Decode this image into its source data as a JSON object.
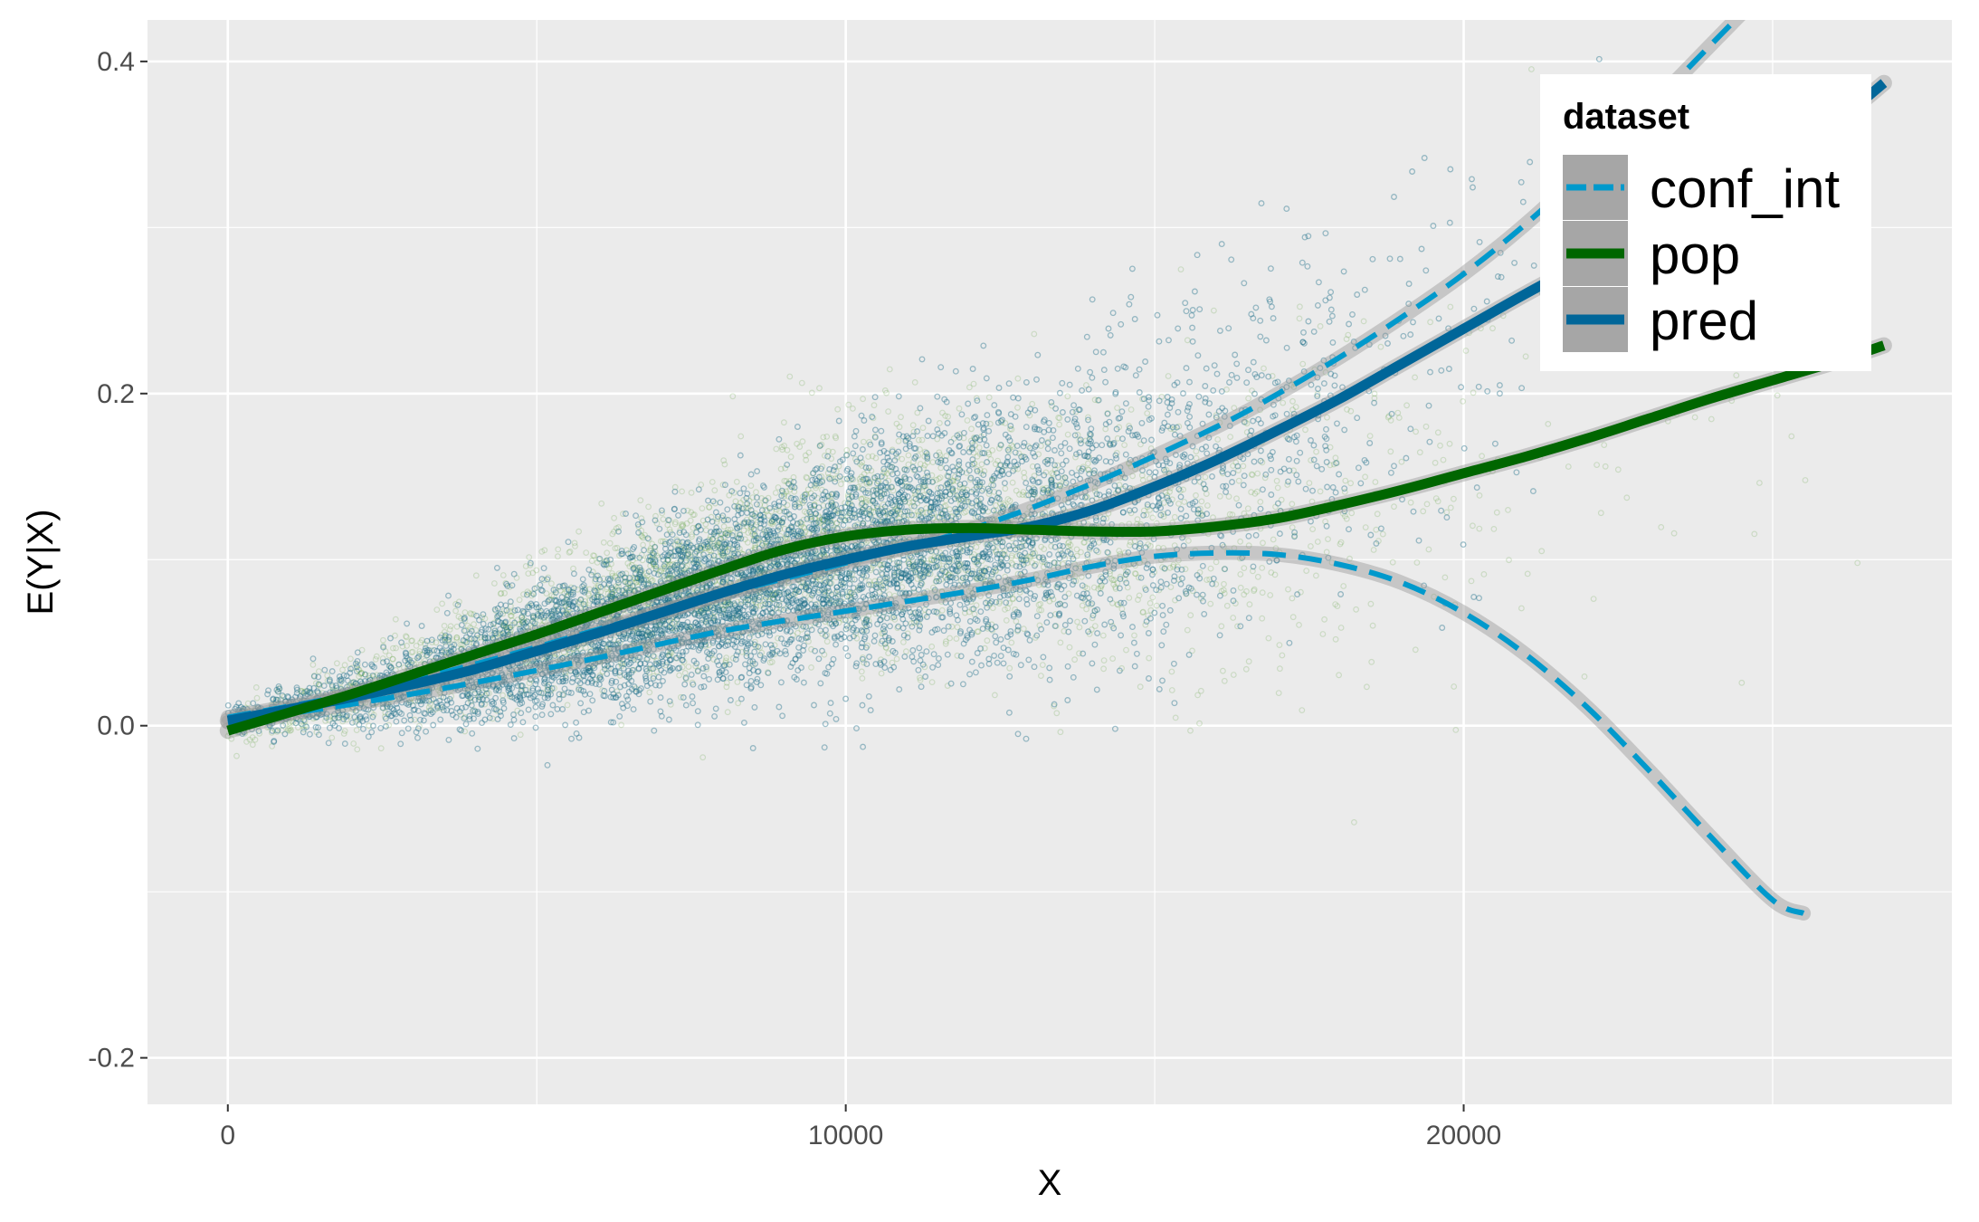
{
  "chart_data": {
    "type": "scatter",
    "title": "",
    "xlabel": "X",
    "ylabel": "E(Y|X)",
    "xlim": [
      -1300,
      27900
    ],
    "ylim": [
      -0.228,
      0.425
    ],
    "x_ticks": [
      0,
      10000,
      20000
    ],
    "x_tick_labels": [
      "0",
      "10000",
      "20000"
    ],
    "x_minor_ticks": [
      5000,
      15000,
      25000
    ],
    "y_ticks": [
      -0.2,
      0.0,
      0.2,
      0.4
    ],
    "y_tick_labels": [
      "-0.2",
      "0.0",
      "0.2",
      "0.4"
    ],
    "y_minor_ticks": [
      -0.1,
      0.1,
      0.3
    ],
    "grid": true,
    "background": "#ebebeb",
    "legend": {
      "title": "dataset",
      "placement": "top-right",
      "entries": [
        {
          "label": "conf_int",
          "color": "#0099cc",
          "style": "dashed"
        },
        {
          "label": "pop",
          "color": "#006600",
          "style": "solid"
        },
        {
          "label": "pred",
          "color": "#006699",
          "style": "solid"
        }
      ]
    },
    "series": [
      {
        "name": "pop",
        "kind": "smooth",
        "color": "#006600",
        "x": [
          0,
          1000,
          2000,
          3000,
          4000,
          5000,
          6000,
          7000,
          8000,
          9000,
          10000,
          11000,
          12000,
          13000,
          14000,
          15000,
          16000,
          17000,
          18000,
          19000,
          20000,
          21000,
          22000,
          23000,
          24000,
          25000,
          26000,
          26800
        ],
        "y": [
          -0.003,
          0.008,
          0.019,
          0.031,
          0.043,
          0.055,
          0.068,
          0.081,
          0.094,
          0.106,
          0.114,
          0.118,
          0.119,
          0.118,
          0.117,
          0.117,
          0.12,
          0.125,
          0.133,
          0.142,
          0.152,
          0.162,
          0.173,
          0.185,
          0.197,
          0.208,
          0.219,
          0.229
        ]
      },
      {
        "name": "pred",
        "kind": "smooth",
        "color": "#006699",
        "x": [
          0,
          1000,
          2000,
          3000,
          4000,
          5000,
          6000,
          7000,
          8000,
          9000,
          10000,
          11000,
          12000,
          13000,
          14000,
          15000,
          16000,
          17000,
          18000,
          19000,
          20000,
          21000,
          22000,
          23000,
          24000,
          25000,
          26000,
          26800
        ],
        "y": [
          0.003,
          0.01,
          0.017,
          0.025,
          0.034,
          0.045,
          0.056,
          0.068,
          0.08,
          0.091,
          0.1,
          0.108,
          0.114,
          0.12,
          0.13,
          0.144,
          0.16,
          0.178,
          0.197,
          0.218,
          0.239,
          0.26,
          0.28,
          0.3,
          0.32,
          0.34,
          0.363,
          0.387
        ]
      },
      {
        "name": "conf_int",
        "kind": "dashed",
        "color": "#0099cc",
        "x": [
          0,
          2000,
          4000,
          6000,
          8000,
          10000,
          12000,
          14000,
          16000,
          17000,
          18000,
          19000,
          20000,
          21000,
          22000,
          23000,
          24000,
          25000,
          25500
        ],
        "y": [
          0.005,
          0.019,
          0.037,
          0.058,
          0.079,
          0.098,
          0.118,
          0.146,
          0.18,
          0.2,
          0.222,
          0.246,
          0.272,
          0.302,
          0.336,
          0.372,
          0.41,
          0.448,
          0.467
        ]
      },
      {
        "name": "conf_int",
        "kind": "dashed",
        "color": "#0099cc",
        "x": [
          0,
          2000,
          4000,
          6000,
          8000,
          10000,
          12000,
          13000,
          14000,
          15000,
          16000,
          17000,
          18000,
          19000,
          20000,
          21000,
          22000,
          23000,
          24000,
          25000,
          25500
        ],
        "y": [
          0.002,
          0.013,
          0.026,
          0.041,
          0.057,
          0.069,
          0.081,
          0.088,
          0.096,
          0.102,
          0.104,
          0.103,
          0.097,
          0.086,
          0.068,
          0.043,
          0.011,
          -0.027,
          -0.067,
          -0.105,
          -0.113
        ]
      }
    ],
    "scatter_points": {
      "pred": {
        "color": "#1f6f8b",
        "n": 6000,
        "x_range": [
          0,
          26800
        ]
      },
      "pop": {
        "color": "#5c9e3c",
        "n": 3500,
        "x_range": [
          0,
          26800
        ]
      }
    }
  }
}
